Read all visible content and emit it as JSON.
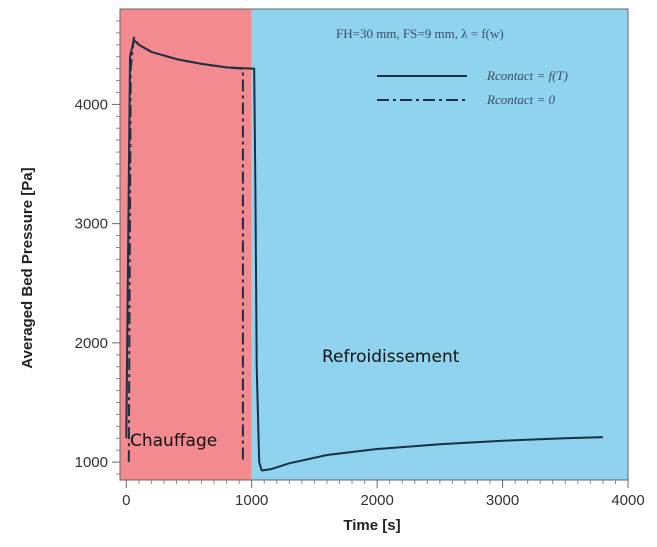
{
  "chart_data": {
    "type": "line",
    "title": "",
    "annotation": "FH=30 mm, FS=9 mm, λ = f(w)",
    "xlabel": "Time [s]",
    "ylabel": "Averaged Bed Pressure  [Pa]",
    "xlim": [
      -50,
      4000
    ],
    "ylim": [
      850,
      4800
    ],
    "xticks": [
      0,
      1000,
      2000,
      3000,
      4000
    ],
    "yticks": [
      1000,
      2000,
      3000,
      4000
    ],
    "grid": false,
    "legend_position": "top-right",
    "regions": [
      {
        "name": "heating",
        "label": "Chauffage",
        "x_range": [
          -50,
          1000
        ],
        "color": "#f28a8f"
      },
      {
        "name": "cooling",
        "label": "Refroidissement",
        "x_range": [
          1000,
          4000
        ],
        "color": "#8fd3ee"
      }
    ],
    "series": [
      {
        "name": "Rcontact = f(T)",
        "style": "solid",
        "color": "#1c3042",
        "points": [
          [
            0,
            1200
          ],
          [
            30,
            4400
          ],
          [
            60,
            4540
          ],
          [
            100,
            4500
          ],
          [
            200,
            4440
          ],
          [
            400,
            4380
          ],
          [
            600,
            4340
          ],
          [
            800,
            4310
          ],
          [
            1000,
            4300
          ],
          [
            1020,
            4300
          ],
          [
            1030,
            3200
          ],
          [
            1040,
            1800
          ],
          [
            1060,
            1000
          ],
          [
            1080,
            930
          ],
          [
            1150,
            940
          ],
          [
            1300,
            990
          ],
          [
            1600,
            1060
          ],
          [
            2000,
            1110
          ],
          [
            2500,
            1150
          ],
          [
            3000,
            1180
          ],
          [
            3500,
            1200
          ],
          [
            3800,
            1210
          ]
        ]
      },
      {
        "name": "Rcontact = 0",
        "style": "dash-dot",
        "color": "#1c3042",
        "points": [
          [
            20,
            1000
          ],
          [
            35,
            4300
          ],
          [
            60,
            4560
          ],
          [
            100,
            4500
          ],
          [
            200,
            4440
          ],
          [
            400,
            4380
          ],
          [
            600,
            4340
          ],
          [
            800,
            4310
          ],
          [
            930,
            4300
          ],
          [
            930,
            1000
          ]
        ]
      }
    ]
  }
}
